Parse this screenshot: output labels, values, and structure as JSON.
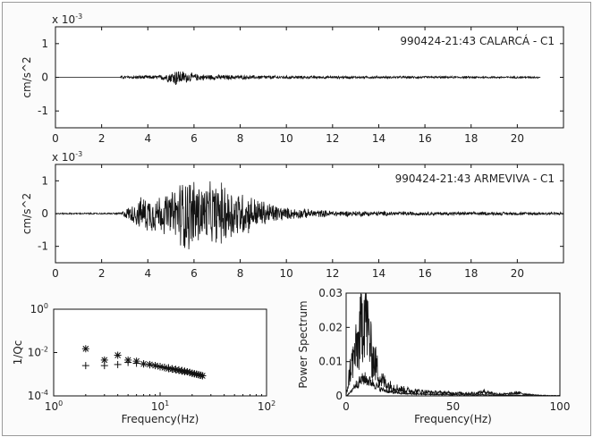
{
  "chart_data": [
    {
      "type": "line",
      "title": "990424-21:43 CALARCÁ - C1",
      "xlabel": "",
      "ylabel": "cm/s^2",
      "scale_label": "x 10",
      "scale_exp": "-3",
      "xlim": [
        0,
        22
      ],
      "ylim": [
        -1.5,
        1.5
      ],
      "xticks": [
        "0",
        "2",
        "4",
        "6",
        "8",
        "10",
        "12",
        "14",
        "16",
        "18",
        "20"
      ],
      "yticks": [
        "1",
        "0",
        "-1"
      ],
      "envelope": {
        "t": [
          0,
          2.8,
          2.85,
          4.5,
          5.0,
          5.2,
          5.4,
          6.0,
          7.0,
          9.0,
          12.0,
          20.9,
          21.0
        ],
        "amp": [
          0,
          0,
          0.05,
          0.07,
          0.18,
          0.3,
          0.24,
          0.12,
          0.08,
          0.06,
          0.04,
          0.03,
          0
        ]
      }
    },
    {
      "type": "line",
      "title": "990424-21:43 ARMEVIVA - C1",
      "xlabel": "",
      "ylabel": "cm/s^2",
      "scale_label": "x 10",
      "scale_exp": "-3",
      "xlim": [
        0,
        22
      ],
      "ylim": [
        -1.5,
        1.5
      ],
      "xticks": [
        "0",
        "2",
        "4",
        "6",
        "8",
        "10",
        "12",
        "14",
        "16",
        "18",
        "20"
      ],
      "yticks": [
        "1",
        "0",
        "-1"
      ],
      "envelope": {
        "t": [
          0,
          2.8,
          3.3,
          3.8,
          5.0,
          5.5,
          5.8,
          6.5,
          7.2,
          8.0,
          8.8,
          10.0,
          12.0,
          16.0,
          22.0
        ],
        "amp": [
          0.02,
          0.03,
          0.3,
          0.6,
          0.7,
          1.25,
          1.3,
          1.0,
          1.05,
          0.8,
          0.5,
          0.2,
          0.1,
          0.06,
          0.05
        ]
      }
    },
    {
      "type": "scatter",
      "title": "",
      "xlabel": "Frequency(Hz)",
      "ylabel": "1/Qc",
      "xscale": "log",
      "yscale": "log",
      "xlim": [
        1,
        100
      ],
      "ylim": [
        0.0001,
        1
      ],
      "xtick_base": "10",
      "xtick_exps": [
        "0",
        "1",
        "2"
      ],
      "ytick_base": "10",
      "ytick_exps": [
        "0",
        "-2",
        "-4"
      ],
      "series": [
        {
          "marker": "*",
          "x": [
            2,
            3,
            4,
            5,
            6,
            7,
            8,
            9,
            10,
            11,
            12,
            13,
            14,
            15,
            16,
            17,
            18,
            19,
            20,
            21,
            22,
            23,
            24,
            25
          ],
          "y": [
            0.015,
            0.0045,
            0.0075,
            0.0045,
            0.004,
            0.003,
            0.0028,
            0.0025,
            0.0022,
            0.002,
            0.0018,
            0.0017,
            0.0016,
            0.0015,
            0.0014,
            0.0013,
            0.0013,
            0.0012,
            0.0011,
            0.00105,
            0.001,
            0.00095,
            0.0009,
            0.00085
          ]
        },
        {
          "marker": "+",
          "x": [
            2,
            3,
            4,
            5,
            6,
            7,
            8,
            9,
            10,
            11,
            12,
            13,
            14,
            15,
            16,
            17,
            18,
            19,
            20,
            21,
            22,
            23,
            24,
            25
          ],
          "y": [
            0.0025,
            0.0025,
            0.0028,
            0.0035,
            0.0032,
            0.003,
            0.0027,
            0.0025,
            0.0023,
            0.0021,
            0.002,
            0.0018,
            0.0017,
            0.0016,
            0.0015,
            0.0014,
            0.0013,
            0.0012,
            0.0011,
            0.00105,
            0.001,
            0.00095,
            0.0009,
            0.00085
          ]
        }
      ]
    },
    {
      "type": "line",
      "title": "",
      "xlabel": "Frequency(Hz)",
      "ylabel": "Power Spectrum",
      "xlim": [
        0,
        100
      ],
      "ylim": [
        0,
        0.03
      ],
      "xticks": [
        "0",
        "50",
        "100"
      ],
      "yticks": [
        "0.03",
        "0.02",
        "0.01",
        "0"
      ],
      "spectrum": {
        "f": [
          0,
          2,
          4,
          6,
          8,
          9,
          10,
          12,
          14,
          16,
          20,
          25,
          30,
          40,
          50,
          60,
          65,
          70,
          75,
          80,
          85,
          90,
          95,
          100
        ],
        "p": [
          0,
          0.008,
          0.012,
          0.016,
          0.024,
          0.027,
          0.02,
          0.012,
          0.009,
          0.005,
          0.003,
          0.002,
          0.0015,
          0.001,
          0.0008,
          0.0007,
          0.0012,
          0.0006,
          0.0005,
          0.0009,
          0.0004,
          0.0002,
          0.0001,
          0.0001
        ],
        "p2": [
          0,
          0.001,
          0.003,
          0.004,
          0.005,
          0.005,
          0.0045,
          0.004,
          0.003,
          0.002,
          0.0012,
          0.0008,
          0.0006,
          0.0004,
          0.0003,
          0.0003,
          0.0003,
          0.0002,
          0.0002,
          0.0002,
          0.0001,
          0.0001,
          0,
          0
        ]
      }
    }
  ]
}
